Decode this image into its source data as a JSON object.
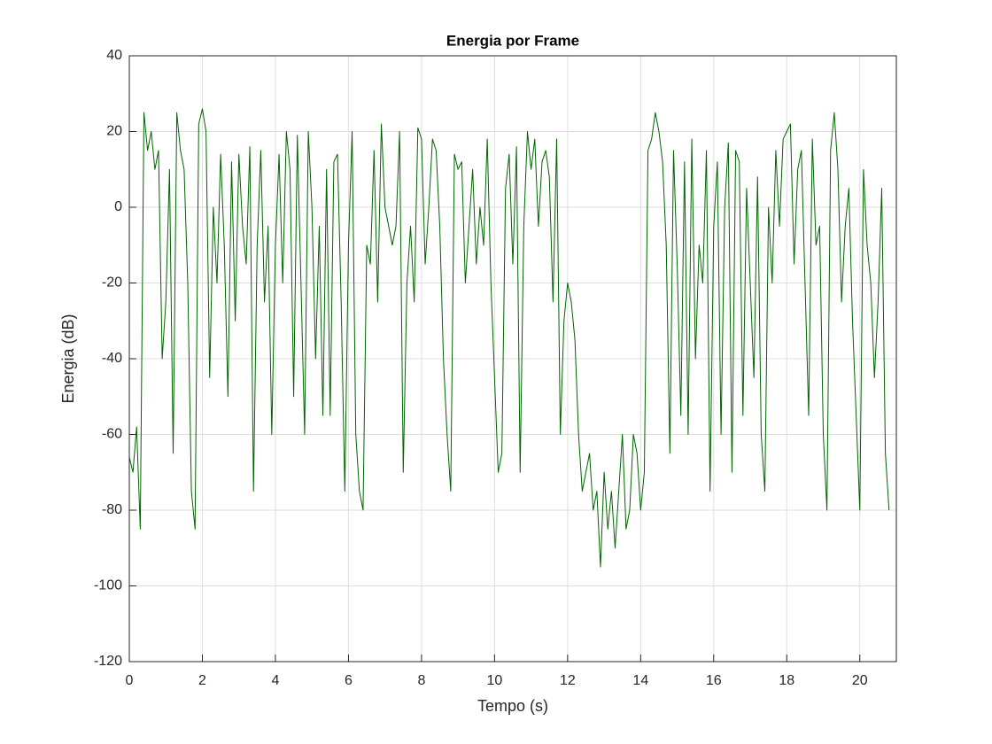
{
  "chart_data": {
    "type": "line",
    "title": "Energia por Frame",
    "x_label": "Tempo (s)",
    "y_label": "Energia (dB)",
    "xlim": [
      0,
      21
    ],
    "ylim": [
      -120,
      40
    ],
    "xticks": [
      0,
      2,
      4,
      6,
      8,
      10,
      12,
      14,
      16,
      18,
      20
    ],
    "yticks": [
      -120,
      -100,
      -80,
      -60,
      -40,
      -20,
      0,
      20,
      40
    ],
    "grid": true,
    "x": [
      0,
      0.1,
      0.2,
      0.3,
      0.4,
      0.5,
      0.6,
      0.7,
      0.8,
      0.9,
      1,
      1.1,
      1.2,
      1.3,
      1.4,
      1.5,
      1.6,
      1.7,
      1.8,
      1.9,
      2,
      2.1,
      2.2,
      2.3,
      2.4,
      2.5,
      2.6,
      2.7,
      2.8,
      2.9,
      3,
      3.1,
      3.2,
      3.3,
      3.4,
      3.5,
      3.6,
      3.7,
      3.8,
      3.9,
      4,
      4.1,
      4.2,
      4.3,
      4.4,
      4.5,
      4.6,
      4.7,
      4.8,
      4.9,
      5,
      5.1,
      5.2,
      5.3,
      5.4,
      5.5,
      5.6,
      5.7,
      5.8,
      5.9,
      6,
      6.1,
      6.2,
      6.3,
      6.4,
      6.5,
      6.6,
      6.7,
      6.8,
      6.9,
      7,
      7.1,
      7.2,
      7.3,
      7.4,
      7.5,
      7.6,
      7.7,
      7.8,
      7.9,
      8,
      8.1,
      8.2,
      8.3,
      8.4,
      8.5,
      8.6,
      8.7,
      8.8,
      8.9,
      9,
      9.1,
      9.2,
      9.3,
      9.4,
      9.5,
      9.6,
      9.7,
      9.8,
      9.9,
      10,
      10.1,
      10.2,
      10.3,
      10.4,
      10.5,
      10.6,
      10.7,
      10.8,
      10.9,
      11,
      11.1,
      11.2,
      11.3,
      11.4,
      11.5,
      11.6,
      11.7,
      11.8,
      11.9,
      12,
      12.1,
      12.2,
      12.3,
      12.4,
      12.5,
      12.6,
      12.7,
      12.8,
      12.9,
      13,
      13.1,
      13.2,
      13.3,
      13.4,
      13.5,
      13.6,
      13.7,
      13.8,
      13.9,
      14,
      14.1,
      14.2,
      14.3,
      14.4,
      14.5,
      14.6,
      14.7,
      14.8,
      14.9,
      15,
      15.1,
      15.2,
      15.3,
      15.4,
      15.5,
      15.6,
      15.7,
      15.8,
      15.9,
      16,
      16.1,
      16.2,
      16.3,
      16.4,
      16.5,
      16.6,
      16.7,
      16.8,
      16.9,
      17,
      17.1,
      17.2,
      17.3,
      17.4,
      17.5,
      17.6,
      17.7,
      17.8,
      17.9,
      18,
      18.1,
      18.2,
      18.3,
      18.4,
      18.5,
      18.6,
      18.7,
      18.8,
      18.9,
      19,
      19.1,
      19.2,
      19.3,
      19.4,
      19.5,
      19.6,
      19.7,
      19.8,
      19.9,
      20,
      20.1,
      20.2,
      20.3,
      20.4,
      20.5,
      20.6,
      20.7,
      20.8
    ],
    "series": [
      {
        "color": "#006400",
        "values": [
          -66,
          -70,
          -58,
          -85,
          25,
          15,
          20,
          10,
          15,
          -40,
          -25,
          10,
          -65,
          25,
          15,
          10,
          -20,
          -75,
          -85,
          22,
          26,
          20,
          -45,
          0,
          -20,
          14,
          -10,
          -50,
          12,
          -30,
          14,
          -5,
          -15,
          16,
          -75,
          -10,
          15,
          -25,
          -5,
          -60,
          -10,
          14,
          -20,
          20,
          10,
          -50,
          19,
          -20,
          -60,
          20,
          0,
          -40,
          -5,
          -55,
          10,
          -55,
          12,
          14,
          -25,
          -75,
          -10,
          20,
          -60,
          -75,
          -80,
          -10,
          -15,
          15,
          -25,
          22,
          0,
          -5,
          -10,
          -5,
          20,
          -70,
          -20,
          -5,
          -25,
          21,
          18,
          -15,
          0,
          18,
          15,
          -5,
          -40,
          -60,
          -75,
          14,
          10,
          12,
          -20,
          -5,
          10,
          -15,
          0,
          -10,
          18,
          -20,
          -45,
          -70,
          -65,
          5,
          14,
          -15,
          16,
          -70,
          -5,
          20,
          10,
          18,
          -5,
          12,
          15,
          8,
          -25,
          18,
          -60,
          -30,
          -20,
          -25,
          -35,
          -60,
          -75,
          -70,
          -65,
          -80,
          -75,
          -95,
          -70,
          -85,
          -75,
          -90,
          -75,
          -60,
          -85,
          -80,
          -60,
          -65,
          -80,
          -70,
          15,
          18,
          25,
          20,
          12,
          -10,
          -65,
          15,
          -15,
          -55,
          12,
          -60,
          18,
          -40,
          -10,
          -20,
          15,
          -75,
          -5,
          12,
          -60,
          0,
          17,
          -70,
          15,
          12,
          -55,
          5,
          -20,
          -45,
          8,
          -60,
          -75,
          0,
          -20,
          15,
          -5,
          18,
          20,
          22,
          -15,
          10,
          15,
          -20,
          -55,
          18,
          -10,
          -5,
          -60,
          -80,
          15,
          25,
          10,
          -25,
          -5,
          5,
          -30,
          -55,
          -80,
          10,
          -10,
          -20,
          -45,
          -25,
          5,
          -65,
          -80
        ]
      }
    ]
  }
}
